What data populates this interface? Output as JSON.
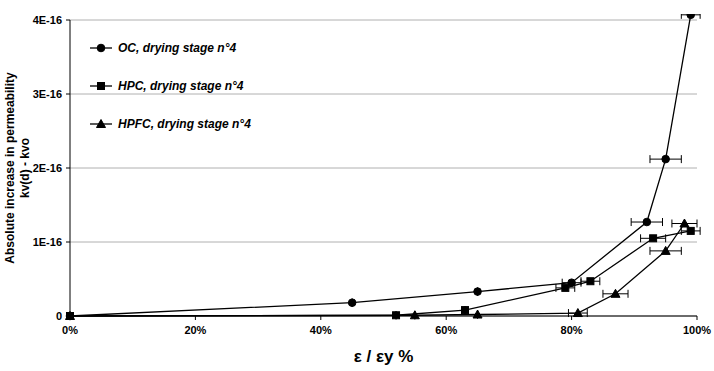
{
  "chart_data": {
    "type": "line",
    "x_label": "ε / εy %",
    "y_label": [
      "Absolute increase in permeability",
      "kv(d) - kvo"
    ],
    "xlim": [
      0,
      100
    ],
    "xticks": [
      {
        "value": 0,
        "label": "0%"
      },
      {
        "value": 20,
        "label": "20%"
      },
      {
        "value": 40,
        "label": "40%"
      },
      {
        "value": 60,
        "label": "60%"
      },
      {
        "value": 80,
        "label": "80%"
      },
      {
        "value": 100,
        "label": "100%"
      }
    ],
    "ylim": [
      0,
      4e-16
    ],
    "yticks": [
      0,
      {
        "value": 1e-16,
        "label": "1E-16"
      },
      {
        "value": 2e-16,
        "label": "2E-16"
      },
      {
        "value": 3e-16,
        "label": "3E-16"
      },
      {
        "value": 4e-16,
        "label": "4E-16"
      }
    ],
    "grid": true,
    "legend": "upper left",
    "series": [
      {
        "name": "OC, drying stage n°4",
        "color": "#000000",
        "marker": "circle",
        "x": [
          0,
          45,
          65,
          80,
          92,
          95,
          99
        ],
        "values": [
          0,
          1.8e-17,
          3.3e-17,
          4.5e-17,
          1.27e-16,
          2.12e-16,
          4.07e-16
        ],
        "x_errors": [
          0,
          0,
          0,
          1.5,
          2.5,
          2.5,
          1.5
        ]
      },
      {
        "name": "HPC, drying stage n°4",
        "color": "#000000",
        "marker": "square",
        "x": [
          0,
          52,
          63,
          79,
          83,
          93,
          99
        ],
        "values": [
          0,
          1e-18,
          8e-18,
          3.8e-17,
          4.7e-17,
          1.05e-16,
          1.15e-16
        ],
        "x_errors": [
          0,
          0,
          0,
          1.5,
          1.5,
          2,
          1.5
        ]
      },
      {
        "name": "HPFC, drying stage n°4",
        "color": "#000000",
        "marker": "triangle",
        "x": [
          0,
          55,
          65,
          81,
          87,
          95,
          98
        ],
        "values": [
          0,
          1e-18,
          2e-18,
          4e-18,
          3e-17,
          8.8e-17,
          1.25e-16
        ],
        "x_errors": [
          0,
          0,
          0,
          1.5,
          2,
          2.5,
          2
        ]
      }
    ]
  }
}
